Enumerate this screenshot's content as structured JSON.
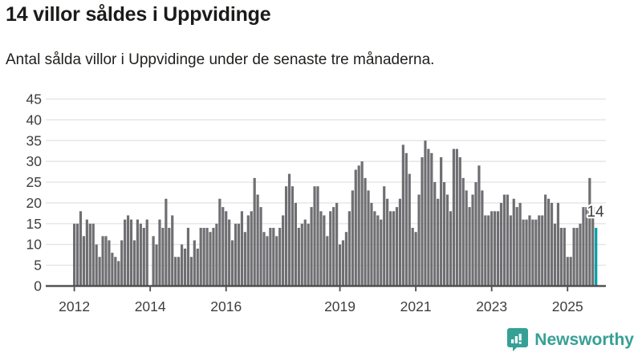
{
  "title": "14 villor såldes i Uppvidinge",
  "subtitle": "Antal sålda villor i Uppvidinge under de senaste tre månaderna.",
  "chart_data": {
    "type": "bar",
    "title": "14 villor såldes i Uppvidinge",
    "subtitle": "Antal sålda villor i Uppvidinge under de senaste tre månaderna.",
    "unit": "antal sålda villor (rullande tre månader)",
    "x_start_label": "2012",
    "values": [
      15,
      15,
      18,
      12,
      16,
      15,
      15,
      10,
      7,
      12,
      12,
      11,
      8,
      7,
      6,
      11,
      16,
      17,
      16,
      11,
      16,
      15,
      14,
      16,
      0,
      12,
      10,
      16,
      14,
      21,
      14,
      17,
      7,
      7,
      10,
      9,
      14,
      7,
      11,
      9,
      14,
      14,
      14,
      13,
      14,
      15,
      21,
      19,
      18,
      16,
      11,
      15,
      15,
      18,
      13,
      17,
      18,
      26,
      22,
      19,
      13,
      12,
      14,
      14,
      12,
      14,
      17,
      24,
      27,
      24,
      20,
      14,
      15,
      16,
      15,
      19,
      24,
      24,
      18,
      17,
      12,
      18,
      19,
      20,
      10,
      11,
      13,
      18,
      23,
      28,
      29,
      30,
      26,
      23,
      20,
      18,
      17,
      16,
      24,
      21,
      18,
      18,
      19,
      21,
      34,
      32,
      27,
      14,
      13,
      22,
      31,
      35,
      33,
      32,
      25,
      21,
      31,
      25,
      22,
      18,
      33,
      33,
      31,
      26,
      23,
      19,
      22,
      25,
      29,
      23,
      17,
      17,
      18,
      18,
      18,
      20,
      22,
      22,
      17,
      21,
      19,
      20,
      16,
      16,
      17,
      16,
      16,
      17,
      17,
      22,
      21,
      20,
      15,
      20,
      14,
      14,
      7,
      7,
      14,
      14,
      15,
      19,
      19,
      26,
      19,
      14
    ],
    "highlight_last": true,
    "highlight_value": 14,
    "highlight_label": "14",
    "ylim": [
      0,
      45
    ],
    "yticks": [
      0,
      5,
      10,
      15,
      20,
      25,
      30,
      35,
      40,
      45
    ],
    "xticks": [
      {
        "label": "2012",
        "month_index": 0
      },
      {
        "label": "2014",
        "month_index": 24
      },
      {
        "label": "2016",
        "month_index": 48
      },
      {
        "label": "2019",
        "month_index": 84
      },
      {
        "label": "2021",
        "month_index": 108
      },
      {
        "label": "2023",
        "month_index": 132
      },
      {
        "label": "2025",
        "month_index": 156
      }
    ],
    "grid": true,
    "legend": "none",
    "colors": {
      "bar": "#6f6f73",
      "highlight": "#00a1a7",
      "grid": "#e3e3e3",
      "axis": "#4c4c4c",
      "tick_label": "#3e3e3e",
      "annotation": "#3c3c3c"
    }
  },
  "footer": {
    "brand": "Newsworthy",
    "logo_color": "#35a096"
  }
}
